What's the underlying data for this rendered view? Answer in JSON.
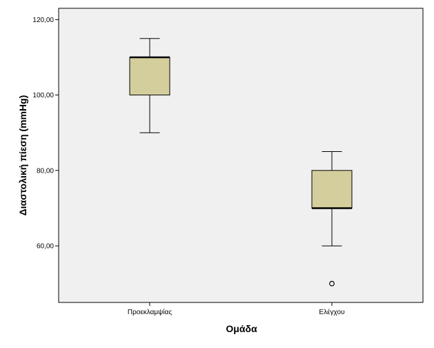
{
  "chart_data": {
    "type": "boxplot",
    "xlabel": "Ομάδα",
    "ylabel": "Διαστολική πίεση (mmHg)",
    "ylim": [
      45,
      123
    ],
    "yticks": [
      60,
      80,
      100,
      120
    ],
    "ytick_labels": [
      "60,00",
      "80,00",
      "100,00",
      "120,00"
    ],
    "grid": false,
    "categories": [
      "Προεκλαμψίας",
      "Ελέγχου"
    ],
    "boxes": [
      {
        "category": "Προεκλαμψίας",
        "min": 90,
        "q1": 100,
        "median": 110,
        "q3": 110,
        "max": 115,
        "outliers": []
      },
      {
        "category": "Ελέγχου",
        "min": 60,
        "q1": 70,
        "median": 70,
        "q3": 80,
        "max": 85,
        "outliers": [
          50
        ]
      }
    ],
    "colors": {
      "plot_background": "#f0f0f0",
      "box_fill": "#d3ce9b",
      "line": "#000000"
    }
  }
}
